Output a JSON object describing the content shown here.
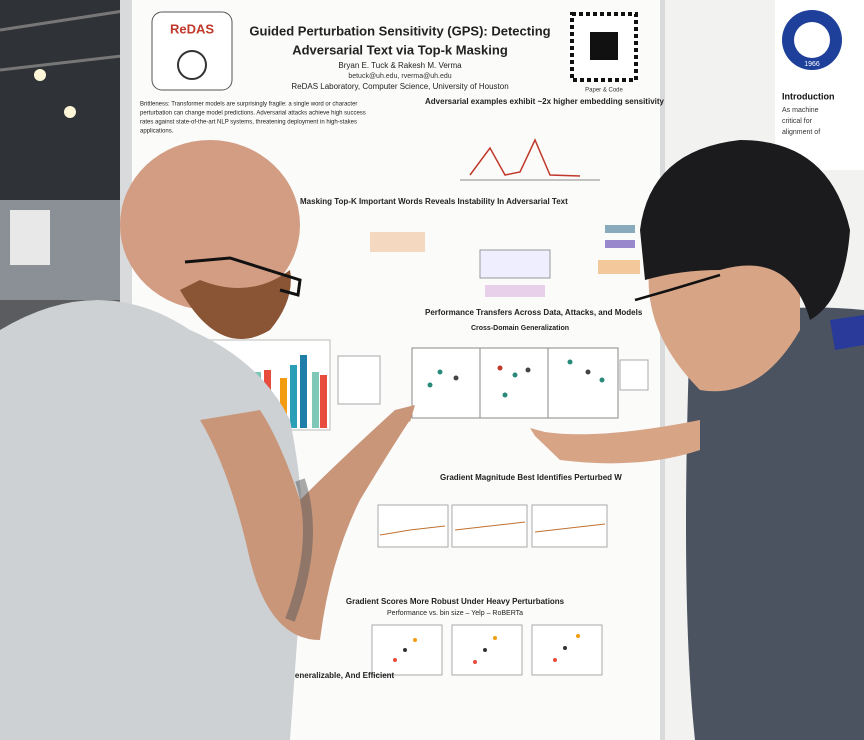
{
  "poster": {
    "logo": "ReDAS",
    "title": [
      "Guided Perturbation Sensitivity (GPS): Detecting",
      "Adversarial Text via Top-k Masking"
    ],
    "authors": "Bryan E. Tuck & Rakesh M. Verma",
    "emails": "betuck@uh.edu, rverma@uh.edu",
    "affiliation": "ReDAS Laboratory, Computer Science, University of Houston",
    "qr_caption": "Paper & Code",
    "intro": [
      "Brittleness: Transformer models are surprisingly fragile: a single word or character",
      "perturbation can change model predictions. Adversarial attacks achieve high success",
      "rates against state-of-the-art NLP systems, threatening deployment in high-stakes",
      "applications."
    ],
    "sections": [
      "Adversarial examples exhibit ~2x higher embedding sensitivity",
      "Masking Top-K Important Words Reveals Instability In Adversarial Text",
      "Performance Transfers Across Data, Attacks, and Models",
      "Cross-Domain Generalization",
      "Gradient Magnitude Best Identifies Perturbed W",
      "Gradient Scores More Robust Under Heavy Perturbations",
      "Performance vs. bin size – Yelp – RoBERTa",
      "Accurate, Generalizable, And Efficient"
    ]
  },
  "side_poster": {
    "year": "1966",
    "heading": "Introduction",
    "text": [
      "As machine",
      "critical for",
      "alignment of"
    ]
  }
}
